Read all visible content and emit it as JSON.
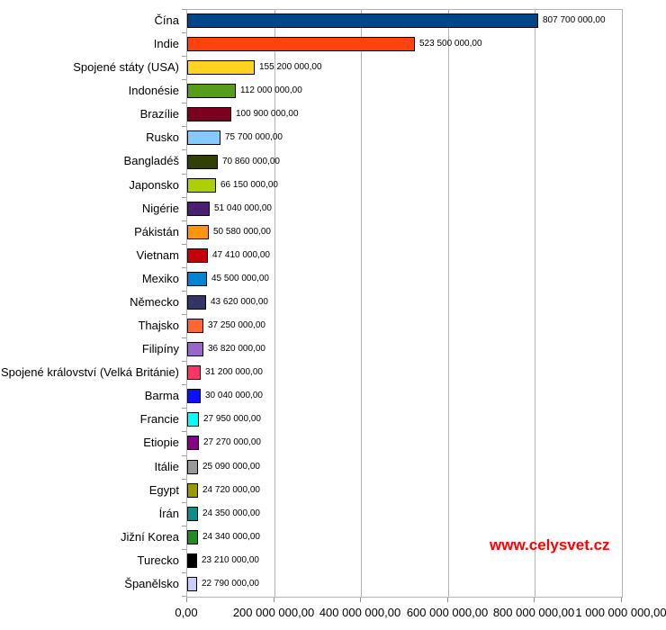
{
  "chart_data": {
    "type": "bar",
    "orientation": "horizontal",
    "title": "",
    "xlabel": "",
    "ylabel": "",
    "xlim": [
      0,
      1000000000
    ],
    "grid": "vertical-major",
    "legend": "none",
    "categories": [
      "Čína",
      "Indie",
      "Spojené státy (USA)",
      "Indonésie",
      "Brazílie",
      "Rusko",
      "Bangladéš",
      "Japonsko",
      "Nigérie",
      "Pákistán",
      "Vietnam",
      "Mexiko",
      "Německo",
      "Thajsko",
      "Filipíny",
      "Spojené království (Velká Británie)",
      "Barma",
      "Francie",
      "Etiopie",
      "Itálie",
      "Egypt",
      "Írán",
      "Jižní Korea",
      "Turecko",
      "Španělsko"
    ],
    "values": [
      807700000,
      523500000,
      155200000,
      112000000,
      100900000,
      75700000,
      70860000,
      66150000,
      51040000,
      50580000,
      47410000,
      45500000,
      43620000,
      37250000,
      36820000,
      31200000,
      30040000,
      27950000,
      27270000,
      25090000,
      24720000,
      24350000,
      24340000,
      23210000,
      22790000
    ],
    "value_labels": [
      "807 700 000,00",
      "523 500 000,00",
      "155 200 000,00",
      "112 000 000,00",
      "100 900 000,00",
      "75 700 000,00",
      "70 860 000,00",
      "66 150 000,00",
      "51 040 000,00",
      "50 580 000,00",
      "47 410 000,00",
      "45 500 000,00",
      "43 620 000,00",
      "37 250 000,00",
      "36 820 000,00",
      "31 200 000,00",
      "30 040 000,00",
      "27 950 000,00",
      "27 270 000,00",
      "25 090 000,00",
      "24 720 000,00",
      "24 350 000,00",
      "24 340 000,00",
      "23 210 000,00",
      "22 790 000,00"
    ],
    "bar_colors": [
      "#004586",
      "#FF420E",
      "#FFD320",
      "#579D1C",
      "#7E0021",
      "#83CAFF",
      "#314004",
      "#AECF00",
      "#4B1F6F",
      "#FF950E",
      "#C5000B",
      "#0084D1",
      "#333366",
      "#FF6633",
      "#9966CC",
      "#FF3366",
      "#0F0FFF",
      "#00FFFF",
      "#880088",
      "#999999",
      "#999900",
      "#0F8C8C",
      "#228B22",
      "#000000",
      "#CCCCFF"
    ],
    "x_ticks": [
      "0,00",
      "200 000 000,00",
      "400 000 000,00",
      "600 000 000,00",
      "800 000 000,00",
      "1 000 000 000,00"
    ]
  },
  "watermark": {
    "text": "www.celysvet.cz",
    "color": "#FF0000"
  }
}
